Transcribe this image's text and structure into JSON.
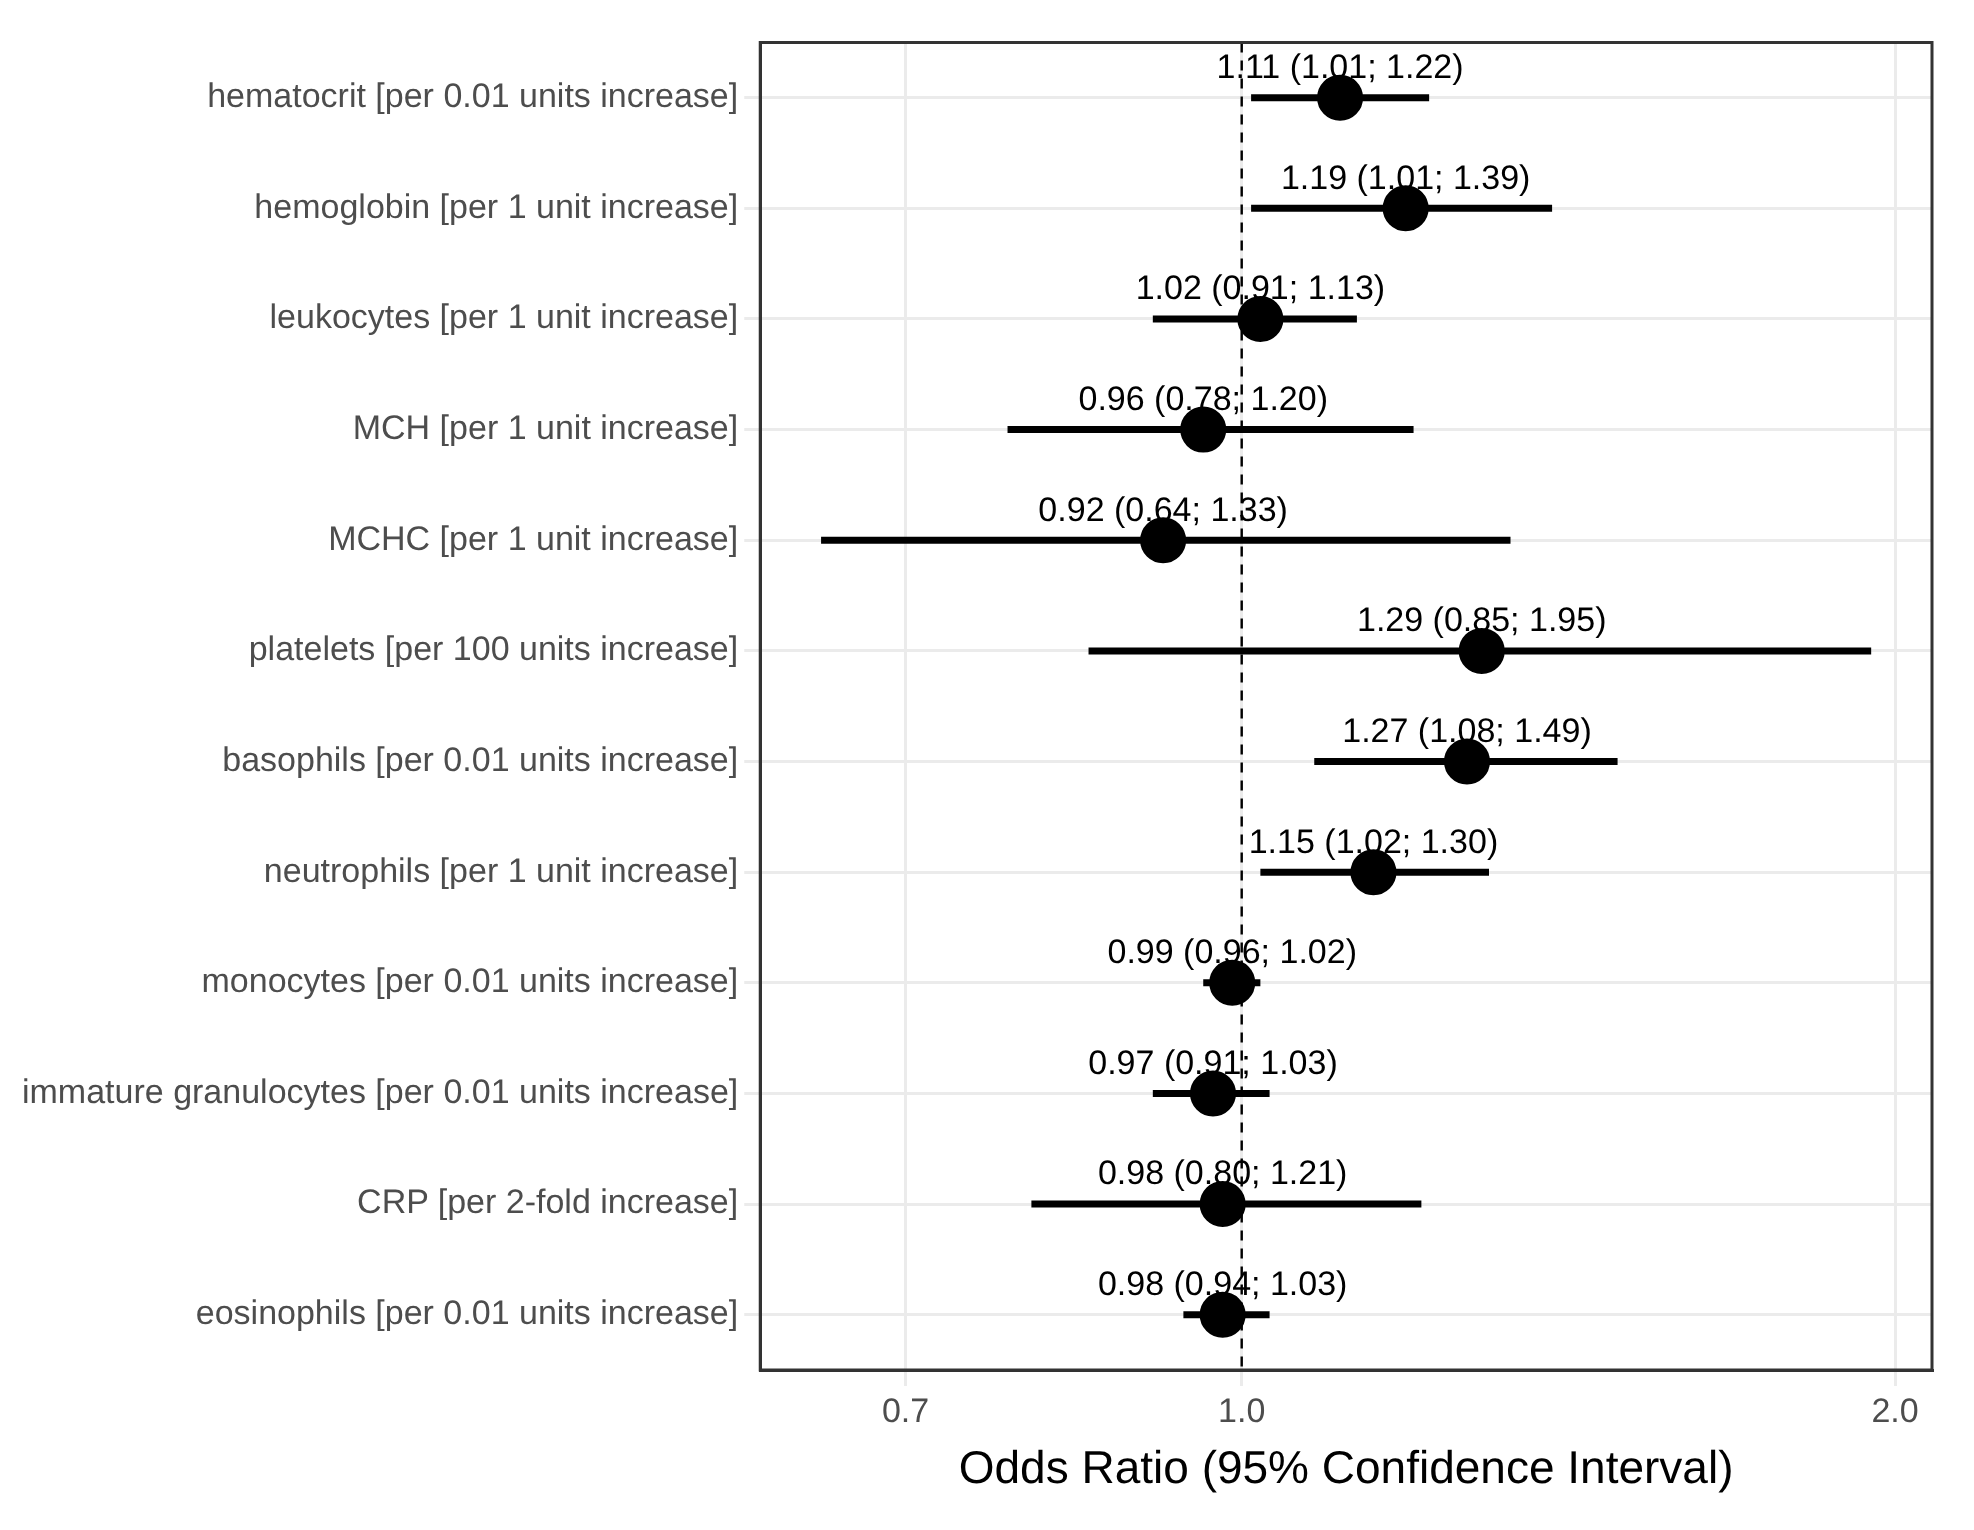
{
  "chart_data": {
    "type": "scatter",
    "orientation": "horizontal",
    "xlabel": "Odds Ratio (95% Confidence Interval)",
    "categories": [
      "hematocrit [per 0.01 units increase]",
      "hemoglobin [per 1 unit increase]",
      "leukocytes [per 1 unit increase]",
      "MCH [per 1 unit increase]",
      "MCHC [per 1 unit increase]",
      "platelets [per 100 units increase]",
      "basophils [per 0.01 units increase]",
      "neutrophils [per 1 unit increase]",
      "monocytes [per 0.01 units increase]",
      "immature granulocytes [per 0.01 units increase]",
      "CRP [per 2-fold increase]",
      "eosinophils [per 0.01 units increase]"
    ],
    "values": [
      1.11,
      1.19,
      1.02,
      0.96,
      0.92,
      1.29,
      1.27,
      1.15,
      0.99,
      0.97,
      0.98,
      0.98
    ],
    "errors": [
      [
        1.01,
        1.22
      ],
      [
        1.01,
        1.39
      ],
      [
        0.91,
        1.13
      ],
      [
        0.78,
        1.2
      ],
      [
        0.64,
        1.33
      ],
      [
        0.85,
        1.95
      ],
      [
        1.08,
        1.49
      ],
      [
        1.02,
        1.3
      ],
      [
        0.96,
        1.02
      ],
      [
        0.91,
        1.03
      ],
      [
        0.8,
        1.21
      ],
      [
        0.94,
        1.03
      ]
    ],
    "value_labels": [
      "1.11 (1.01; 1.22)",
      "1.19 (1.01; 1.39)",
      "1.02 (0.91; 1.13)",
      "0.96 (0.78; 1.20)",
      "0.92 (0.64; 1.33)",
      "1.29 (0.85; 1.95)",
      "1.27 (1.08; 1.49)",
      "1.15 (1.02; 1.30)",
      "0.99 (0.96; 1.02)",
      "0.97 (0.91; 1.03)",
      "0.98 (0.80; 1.21)",
      "0.98 (0.94; 1.03)"
    ],
    "color": "#000000",
    "log": "x",
    "xlim": [
      0.6,
      2.08
    ],
    "xticks": [
      {
        "value": 0.7,
        "label": "0.7"
      },
      {
        "value": 1,
        "label": "1.0"
      },
      {
        "value": 2,
        "label": "2.0"
      }
    ],
    "ref_lines": [
      {
        "axis": "x",
        "value": 1,
        "line_style": "dashed",
        "color": "#000000"
      }
    ],
    "grid": true,
    "legend": false,
    "marker": "circle"
  }
}
